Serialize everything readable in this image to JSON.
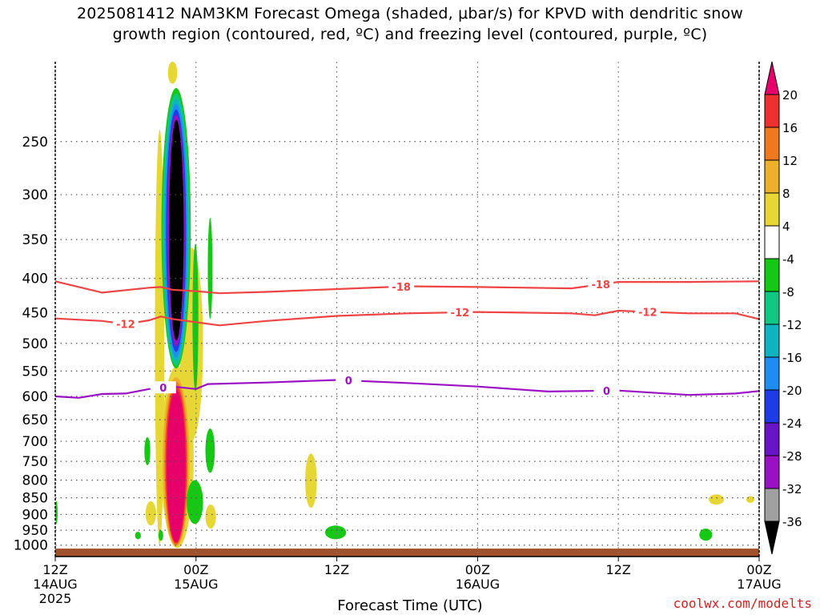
{
  "title_line1": "2025081412 NAM3KM Forecast Omega (shaded, μbar/s) for KPVD with dendritic snow",
  "title_line2": "growth region (contoured, red, ºC) and freezing level (contoured, purple, ºC)",
  "watermark": "coolwx.com/modelts",
  "chart_data": {
    "type": "time-height cross-section",
    "xlabel": "Forecast Time (UTC)",
    "xlim": [
      "2025-08-14T12:00Z",
      "2025-08-17T00:00Z"
    ],
    "x_ticks": [
      {
        "t": 0,
        "lines": [
          "12Z",
          "14AUG",
          "2025"
        ]
      },
      {
        "t": 12,
        "lines": [
          "00Z",
          "15AUG"
        ]
      },
      {
        "t": 24,
        "lines": [
          "12Z"
        ]
      },
      {
        "t": 36,
        "lines": [
          "00Z",
          "16AUG"
        ]
      },
      {
        "t": 48,
        "lines": [
          "12Z"
        ]
      },
      {
        "t": 60,
        "lines": [
          "00Z",
          "17AUG"
        ]
      }
    ],
    "y_scale": "log-pressure (hPa), decreasing upward",
    "ylim_hPa": [
      1040,
      190
    ],
    "y_ticks_hPa": [
      250,
      300,
      350,
      400,
      450,
      500,
      550,
      600,
      650,
      700,
      750,
      800,
      850,
      900,
      950,
      1000
    ],
    "grid": true,
    "colorbar": {
      "unit": "μbar/s",
      "labels": [
        "20",
        "16",
        "12",
        "8",
        "4",
        "-4",
        "-8",
        "-12",
        "-16",
        "-20",
        "-24",
        "-28",
        "-32",
        "-36"
      ],
      "colors": [
        "#e8006a",
        "#ee3030",
        "#f0781e",
        "#ecb02a",
        "#e6d636",
        "#ffffff",
        "#14c814",
        "#10c884",
        "#10b4c0",
        "#1e8cf0",
        "#1e3ce6",
        "#6a14c8",
        "#9a10c4",
        "#a0a0a0",
        "#000000"
      ]
    },
    "contours": [
      {
        "label": "-18",
        "color": "#ee4444",
        "label_at_hours": [
          29.5,
          46.5
        ],
        "points": [
          [
            0,
            404
          ],
          [
            4,
            420
          ],
          [
            8,
            413
          ],
          [
            9,
            412
          ],
          [
            10,
            416
          ],
          [
            12,
            418
          ],
          [
            14,
            421
          ],
          [
            18,
            419
          ],
          [
            24,
            415
          ],
          [
            30,
            411
          ],
          [
            36,
            412
          ],
          [
            44,
            414
          ],
          [
            48,
            405
          ],
          [
            54,
            405
          ],
          [
            60,
            404
          ]
        ]
      },
      {
        "label": "-12",
        "color": "#ee4444",
        "label_at_hours": [
          6,
          34.5,
          50.5
        ],
        "points": [
          [
            0,
            459
          ],
          [
            4,
            463
          ],
          [
            6,
            468
          ],
          [
            8,
            462
          ],
          [
            9,
            456
          ],
          [
            10,
            460
          ],
          [
            12,
            465
          ],
          [
            14,
            470
          ],
          [
            18,
            463
          ],
          [
            24,
            455
          ],
          [
            30,
            451
          ],
          [
            36,
            449
          ],
          [
            44,
            451
          ],
          [
            46,
            454
          ],
          [
            48,
            447
          ],
          [
            54,
            451
          ],
          [
            58,
            451
          ],
          [
            60,
            460
          ]
        ]
      },
      {
        "label": "0",
        "color": "#9a10c4",
        "label_at_hours": [
          9.2,
          25,
          47
        ],
        "points": [
          [
            0,
            600
          ],
          [
            2,
            603
          ],
          [
            4,
            595
          ],
          [
            6,
            594
          ],
          [
            8,
            585
          ],
          [
            9,
            583
          ],
          [
            10,
            580
          ],
          [
            12,
            585
          ],
          [
            13,
            575
          ],
          [
            18,
            572
          ],
          [
            24,
            567
          ],
          [
            30,
            573
          ],
          [
            36,
            580
          ],
          [
            42,
            590
          ],
          [
            48,
            588
          ],
          [
            54,
            597
          ],
          [
            58,
            594
          ],
          [
            60,
            589
          ]
        ]
      }
    ],
    "omega_features": [
      {
        "time_hours": [
          9.7,
          11.0
        ],
        "p_hPa": [
          538,
          217
        ],
        "value": "< -36",
        "note": "core with nested -4 to -32 bands"
      },
      {
        "time_hours": [
          9.2,
          11.5
        ],
        "p_hPa": [
          1005,
          565
        ],
        "value": "> 20",
        "note": "core with nested 4 to 16 bands"
      },
      {
        "time_hours": [
          8.6,
          9.2
        ],
        "p_hPa": [
          560,
          240
        ],
        "value": "4 to 8"
      },
      {
        "time_hours": [
          11.0,
          12.5
        ],
        "p_hPa": [
          700,
          360
        ],
        "value": "4 to 8"
      },
      {
        "time_hours": [
          13.0,
          13.4
        ],
        "p_hPa": [
          460,
          325
        ],
        "value": "-4 to -8"
      },
      {
        "time_hours": [
          21.3,
          22.3
        ],
        "p_hPa": [
          880,
          730
        ],
        "value": "4 to 8"
      },
      {
        "time_hours": [
          23.0,
          24.8
        ],
        "p_hPa": [
          980,
          935
        ],
        "value": "-4 to -8"
      },
      {
        "time_hours": [
          55.7,
          57.0
        ],
        "p_hPa": [
          870,
          840
        ],
        "value": "4 to 8"
      },
      {
        "time_hours": [
          54.9,
          56.0
        ],
        "p_hPa": [
          985,
          945
        ],
        "value": "-4 to -8"
      }
    ],
    "ground": {
      "color": "#a0522d",
      "p_hPa_top": 1012
    }
  }
}
